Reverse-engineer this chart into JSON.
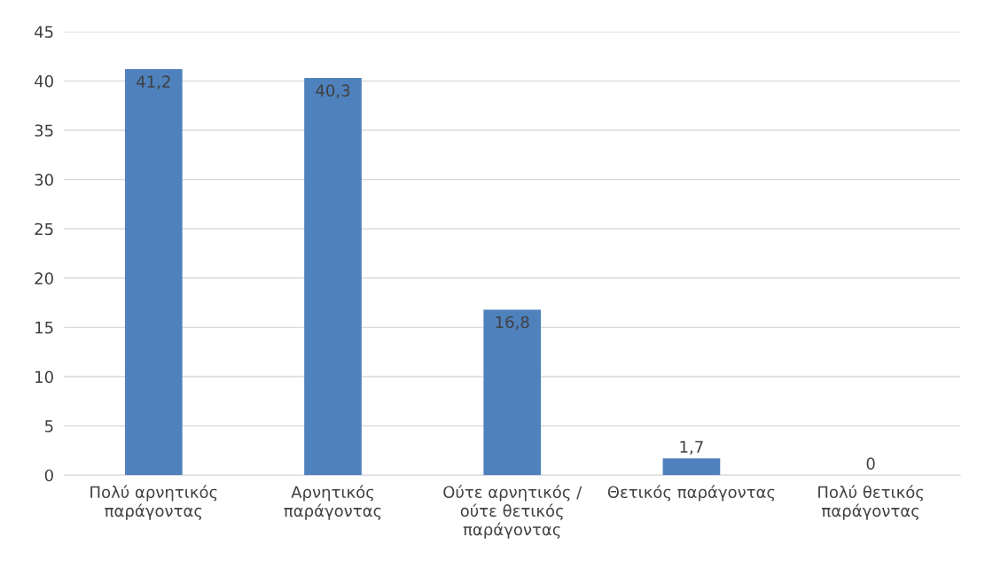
{
  "chart_data": {
    "type": "bar",
    "categories": [
      "Πολύ αρνητικός\nπαράγοντας",
      "Αρνητικός\nπαράγοντας",
      "Ούτε αρνητικός /\nούτε θετικός\nπαράγοντας",
      "Θετικός παράγοντας",
      "Πολύ θετικός\nπαράγοντας"
    ],
    "values": [
      41.2,
      40.3,
      16.8,
      1.7,
      0
    ],
    "value_labels": [
      "41,2",
      "40,3",
      "16,8",
      "1,7",
      "0"
    ],
    "color": "#4f81bd",
    "ylim": [
      0,
      45
    ],
    "yticks": [
      0,
      5,
      10,
      15,
      20,
      25,
      30,
      35,
      40,
      45
    ],
    "grid": "y",
    "legend": false
  }
}
